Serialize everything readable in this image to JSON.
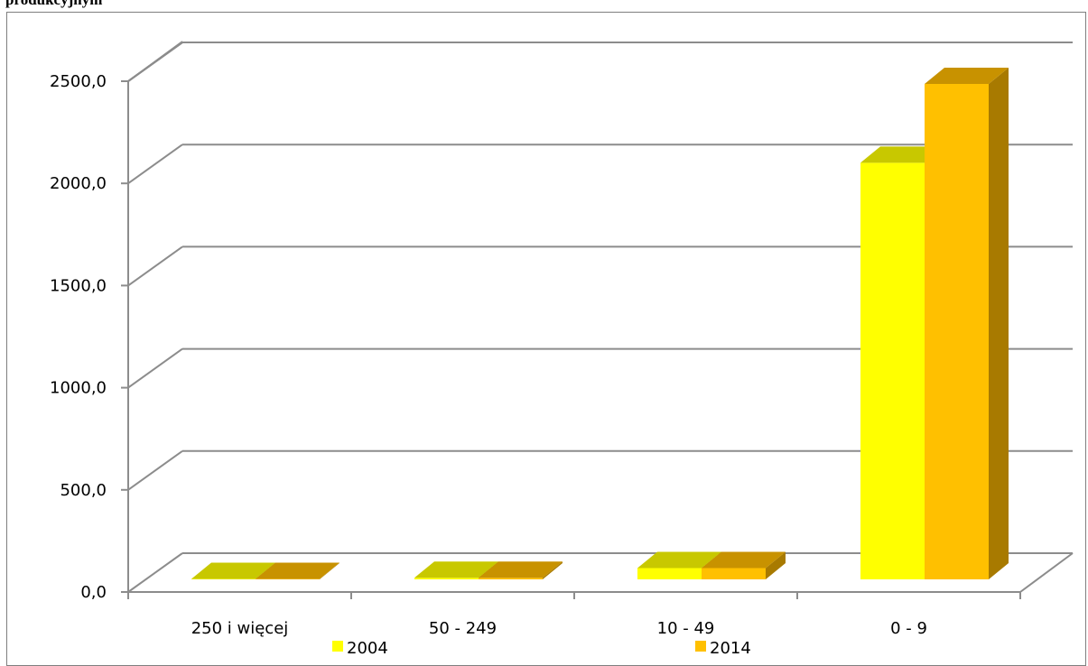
{
  "title": "produkcyjnym",
  "chart_data": {
    "type": "bar",
    "categories": [
      "250 i więcej",
      "50 - 249",
      "10 - 49",
      "0 - 9"
    ],
    "series": [
      {
        "name": "2004",
        "values": [
          2,
          8,
          56,
          2060
        ],
        "color": "#ffff00",
        "top_color": "#c8c800",
        "side_color": "#a8a800"
      },
      {
        "name": "2014",
        "values": [
          2,
          8,
          56,
          2450
        ],
        "color": "#ffc000",
        "top_color": "#c89200",
        "side_color": "#a87a00"
      }
    ],
    "y_tick_labels": [
      "0,0",
      "500,0",
      "1000,0",
      "1500,0",
      "2000,0",
      "2500,0"
    ],
    "ylim": [
      0,
      2700
    ],
    "grid": true,
    "legend_position": "bottom",
    "three_d": true
  }
}
